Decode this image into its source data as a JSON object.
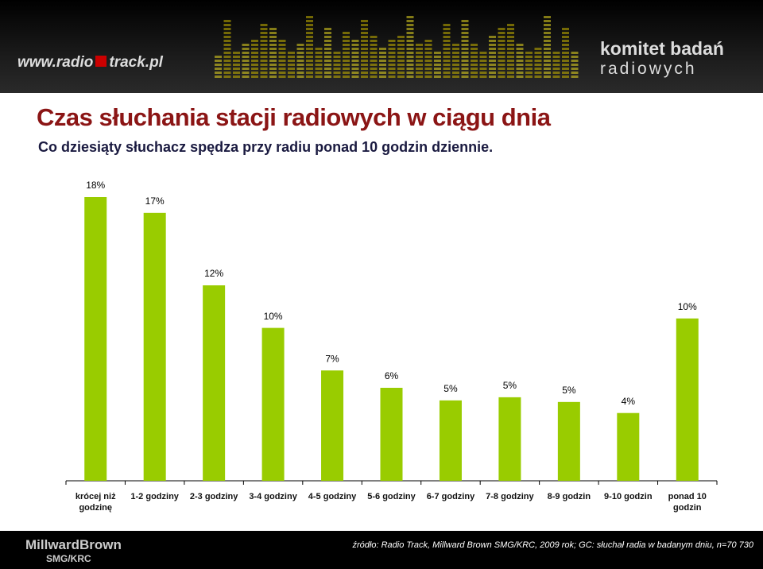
{
  "header": {
    "left_logo": [
      "www.radio",
      "track.pl"
    ],
    "right_logo": [
      "komitet badań",
      "radiowych"
    ]
  },
  "chart_data": {
    "type": "bar",
    "title": "Czas słuchania stacji radiowych w ciągu dnia",
    "subtitle": "Co dziesiąty słuchacz spędza przy radiu ponad 10 godzin dziennie.",
    "categories": [
      "krócej niż godzinę",
      "1-2 godziny",
      "2-3 godziny",
      "3-4 godziny",
      "4-5 godziny",
      "5-6 godziny",
      "6-7 godziny",
      "7-8 godziny",
      "8-9 godzin",
      "9-10 godzin",
      "ponad 10 godzin"
    ],
    "values": [
      18,
      17,
      12.4,
      9.7,
      7,
      5.9,
      5.1,
      5.3,
      5,
      4.3,
      10.3
    ],
    "value_labels": [
      "18%",
      "17%",
      "12%",
      "10%",
      "7%",
      "6%",
      "5%",
      "5%",
      "5%",
      "4%",
      "10%"
    ],
    "color": "#99cc00",
    "source": "źródło: Radio Track, Millward Brown SMG/KRC, 2009 rok; GC: słuchał radia w badanym dniu, n=70 730"
  },
  "footer": {
    "logo": [
      "MillwardBrown",
      "SMG/KRC"
    ]
  }
}
